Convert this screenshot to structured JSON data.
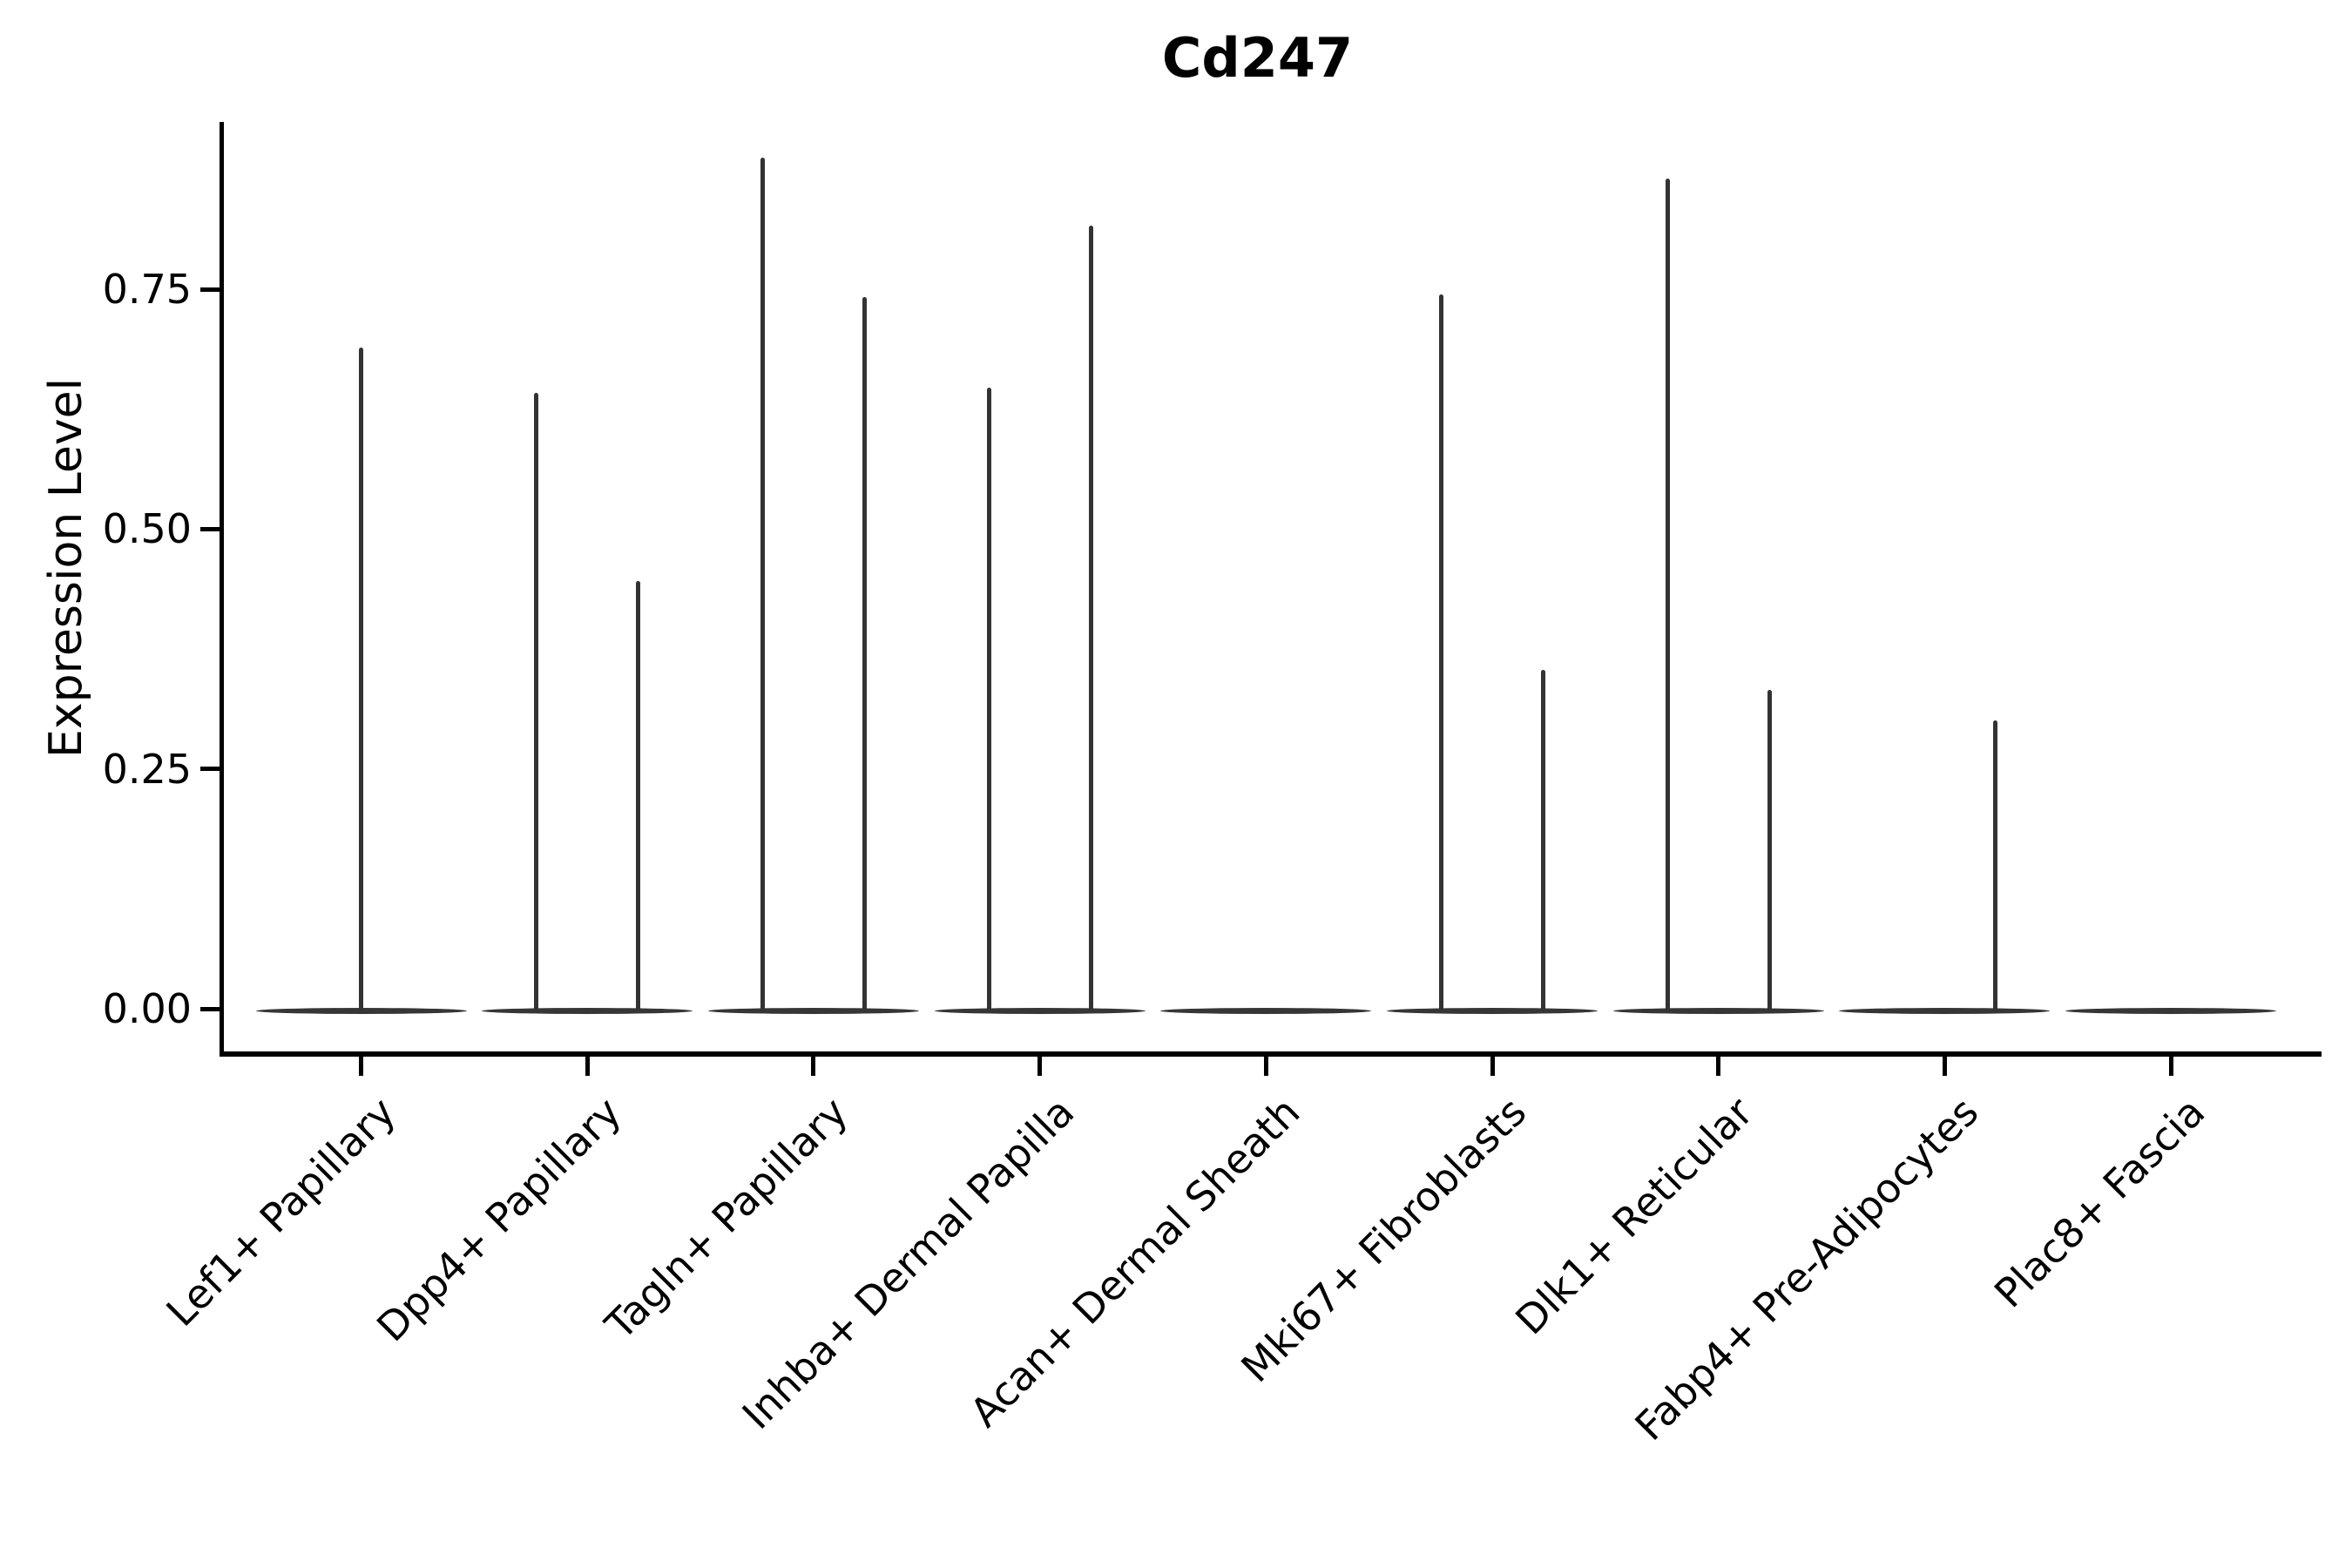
{
  "title": "Cd247",
  "chart_data": {
    "type": "violin",
    "title": "Cd247",
    "xlabel": "",
    "ylabel": "Expression Level",
    "ylim": [
      -0.047,
      0.925
    ],
    "grid": false,
    "legend": "none",
    "violin_color": "#333333",
    "axis_color": "#000000",
    "yticks": [
      {
        "value": 0.0,
        "label": "0.00"
      },
      {
        "value": 0.25,
        "label": "0.25"
      },
      {
        "value": 0.5,
        "label": "0.50"
      },
      {
        "value": 0.75,
        "label": "0.75"
      }
    ],
    "categories": [
      {
        "label": "Lef1+ Papillary",
        "has_zero_base": true,
        "violins": [
          {
            "position": "center",
            "max": 0.689
          }
        ]
      },
      {
        "label": "Dpp4+ Papillary",
        "has_zero_base": true,
        "violins": [
          {
            "position": "left",
            "max": 0.642
          },
          {
            "position": "right",
            "max": 0.446
          }
        ]
      },
      {
        "label": "Tagln+ Papillary",
        "has_zero_base": true,
        "violins": [
          {
            "position": "left",
            "max": 0.887
          },
          {
            "position": "right",
            "max": 0.742
          }
        ]
      },
      {
        "label": "Inhba+ Dermal Papilla",
        "has_zero_base": true,
        "violins": [
          {
            "position": "left",
            "max": 0.647
          },
          {
            "position": "right",
            "max": 0.816
          }
        ]
      },
      {
        "label": "Acan+ Dermal Sheath",
        "has_zero_base": true,
        "violins": []
      },
      {
        "label": "Mki67+ Fibroblasts",
        "has_zero_base": true,
        "violins": [
          {
            "position": "left",
            "max": 0.745
          },
          {
            "position": "right",
            "max": 0.353
          }
        ]
      },
      {
        "label": "Dlk1+ Reticular",
        "has_zero_base": true,
        "violins": [
          {
            "position": "left",
            "max": 0.865
          },
          {
            "position": "right",
            "max": 0.332
          }
        ]
      },
      {
        "label": "Fabp4+ Pre-Adipocytes",
        "has_zero_base": true,
        "violins": [
          {
            "position": "right",
            "max": 0.301
          }
        ]
      },
      {
        "label": "Plac8+ Fascia",
        "has_zero_base": true,
        "violins": []
      }
    ]
  }
}
